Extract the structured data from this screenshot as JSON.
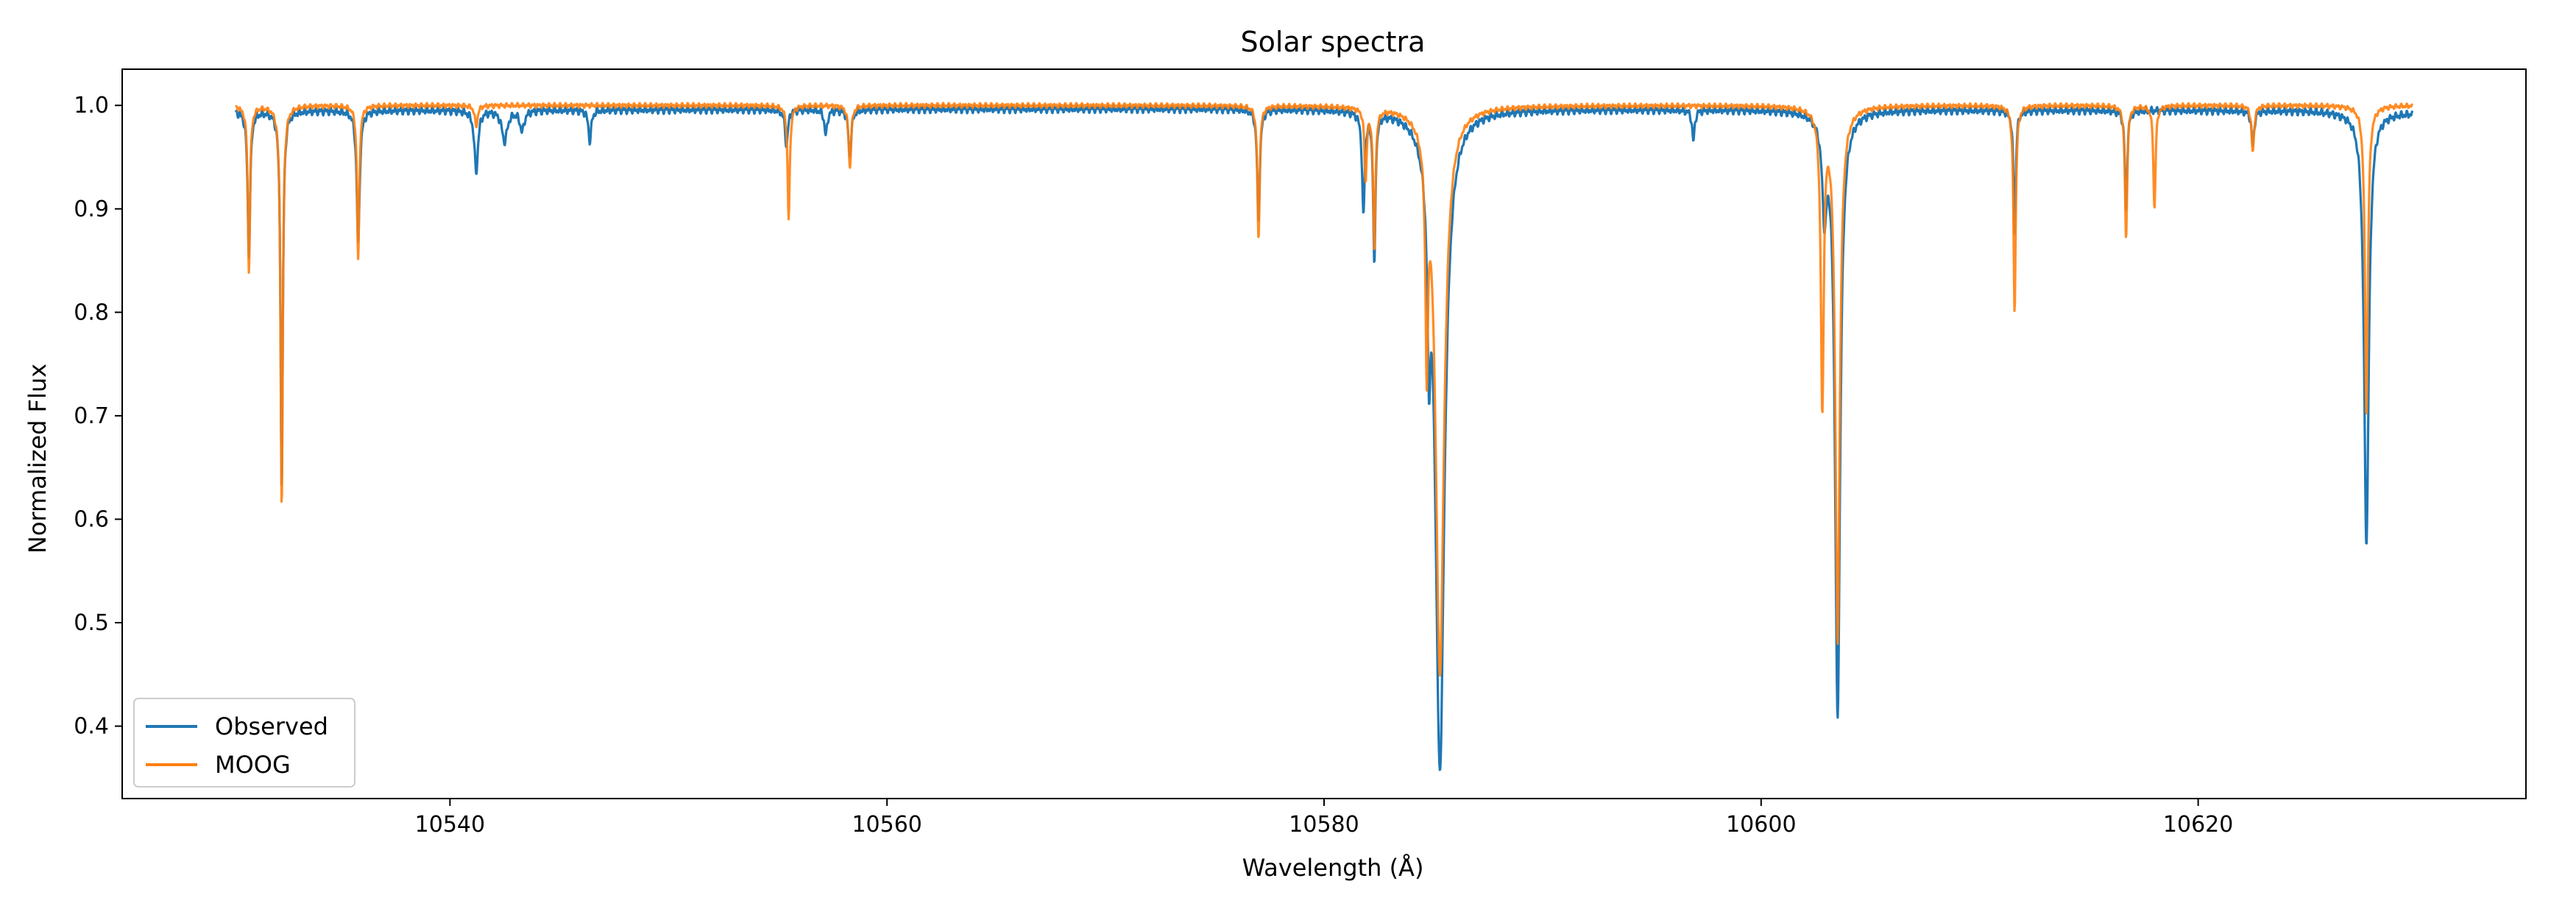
{
  "chart_data": {
    "type": "line",
    "title": "Solar spectra",
    "xlabel": "Wavelength (Å)",
    "ylabel": "Normalized Flux",
    "xlim": [
      10525,
      10635
    ],
    "ylim": [
      0.33,
      1.035
    ],
    "xticks": [
      10540,
      10560,
      10580,
      10600,
      10620
    ],
    "yticks": [
      0.4,
      0.5,
      0.6,
      0.7,
      0.8,
      0.9,
      1.0
    ],
    "x_range": [
      10530.2,
      10629.8
    ],
    "continuum": 1.0,
    "grid": false,
    "legend_position": "lower-left",
    "series": [
      {
        "name": "Observed",
        "color": "#1f77b4",
        "continuum_lines": [
          [
            10530.2,
            0.995
          ],
          [
            10575,
            0.997
          ],
          [
            10625,
            0.995
          ],
          [
            10629.8,
            0.993
          ]
        ],
        "lines": [
          {
            "center": 10530.8,
            "depth": 0.14,
            "width": 0.07
          },
          {
            "center": 10532.3,
            "depth": 0.37,
            "width": 0.06
          },
          {
            "center": 10535.8,
            "depth": 0.13,
            "width": 0.08
          },
          {
            "center": 10541.2,
            "depth": 0.06,
            "width": 0.1
          },
          {
            "center": 10542.5,
            "depth": 0.03,
            "width": 0.15
          },
          {
            "center": 10543.3,
            "depth": 0.02,
            "width": 0.12
          },
          {
            "center": 10546.4,
            "depth": 0.03,
            "width": 0.08
          },
          {
            "center": 10555.4,
            "depth": 0.035,
            "width": 0.08
          },
          {
            "center": 10557.2,
            "depth": 0.025,
            "width": 0.08
          },
          {
            "center": 10558.3,
            "depth": 0.045,
            "width": 0.08
          },
          {
            "center": 10577.0,
            "depth": 0.11,
            "width": 0.07
          },
          {
            "center": 10581.8,
            "depth": 0.1,
            "width": 0.07
          },
          {
            "center": 10582.3,
            "depth": 0.15,
            "width": 0.06
          },
          {
            "center": 10584.8,
            "depth": 0.18,
            "width": 0.08
          },
          {
            "center": 10585.3,
            "depth": 0.64,
            "width": 0.25
          },
          {
            "center": 10596.9,
            "depth": 0.03,
            "width": 0.07
          },
          {
            "center": 10602.9,
            "depth": 0.09,
            "width": 0.12
          },
          {
            "center": 10603.5,
            "depth": 0.59,
            "width": 0.14
          },
          {
            "center": 10611.6,
            "depth": 0.12,
            "width": 0.06
          },
          {
            "center": 10616.7,
            "depth": 0.1,
            "width": 0.06
          },
          {
            "center": 10622.5,
            "depth": 0.035,
            "width": 0.07
          },
          {
            "center": 10627.7,
            "depth": 0.42,
            "width": 0.13
          }
        ]
      },
      {
        "name": "MOOG",
        "color": "#ff7f0e",
        "continuum_lines": [
          [
            10530.2,
            1.0
          ],
          [
            10629.8,
            1.0
          ]
        ],
        "lines": [
          {
            "center": 10530.8,
            "depth": 0.16,
            "width": 0.06
          },
          {
            "center": 10532.3,
            "depth": 0.39,
            "width": 0.06
          },
          {
            "center": 10535.8,
            "depth": 0.15,
            "width": 0.06
          },
          {
            "center": 10541.2,
            "depth": 0.02,
            "width": 0.08
          },
          {
            "center": 10555.5,
            "depth": 0.11,
            "width": 0.06
          },
          {
            "center": 10558.3,
            "depth": 0.06,
            "width": 0.07
          },
          {
            "center": 10577.0,
            "depth": 0.13,
            "width": 0.06
          },
          {
            "center": 10581.9,
            "depth": 0.07,
            "width": 0.06
          },
          {
            "center": 10582.3,
            "depth": 0.14,
            "width": 0.06
          },
          {
            "center": 10584.7,
            "depth": 0.22,
            "width": 0.07
          },
          {
            "center": 10585.3,
            "depth": 0.55,
            "width": 0.23
          },
          {
            "center": 10602.8,
            "depth": 0.29,
            "width": 0.08
          },
          {
            "center": 10603.5,
            "depth": 0.52,
            "width": 0.12
          },
          {
            "center": 10611.6,
            "depth": 0.2,
            "width": 0.06
          },
          {
            "center": 10616.7,
            "depth": 0.13,
            "width": 0.06
          },
          {
            "center": 10618.0,
            "depth": 0.1,
            "width": 0.06
          },
          {
            "center": 10622.5,
            "depth": 0.045,
            "width": 0.07
          },
          {
            "center": 10627.7,
            "depth": 0.3,
            "width": 0.08
          }
        ]
      }
    ]
  }
}
